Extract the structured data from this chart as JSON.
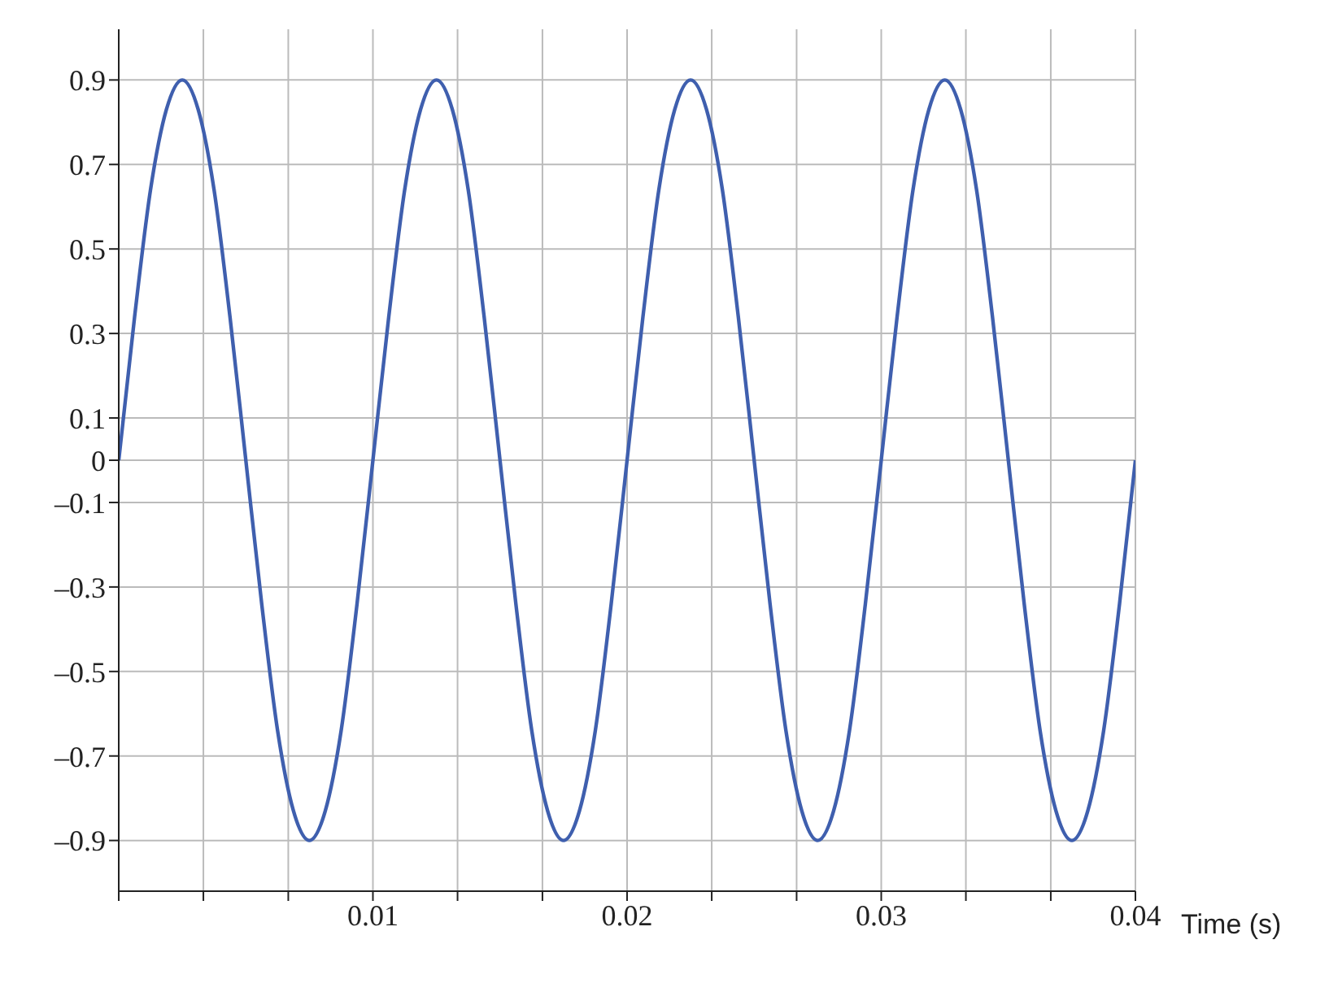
{
  "chart_data": {
    "type": "line",
    "xlabel": "Time (s)",
    "x": [
      0,
      0.000625,
      0.00125,
      0.001875,
      0.0025,
      0.003125,
      0.00375,
      0.004375,
      0.005,
      0.005625,
      0.00625,
      0.006875,
      0.0075,
      0.008125,
      0.00875,
      0.009375,
      0.01,
      0.010625,
      0.01125,
      0.011875,
      0.0125,
      0.013125,
      0.01375,
      0.014375,
      0.015,
      0.015625,
      0.01625,
      0.016875,
      0.0175,
      0.018125,
      0.01875,
      0.019375,
      0.02,
      0.020625,
      0.02125,
      0.021875,
      0.0225,
      0.023125,
      0.02375,
      0.024375,
      0.025,
      0.025625,
      0.02625,
      0.026875,
      0.0275,
      0.028125,
      0.02875,
      0.029375,
      0.03,
      0.030625,
      0.03125,
      0.031875,
      0.0325,
      0.033125,
      0.03375,
      0.034375,
      0.035,
      0.035625,
      0.03625,
      0.036875,
      0.0375,
      0.038125,
      0.03875,
      0.039375,
      0.04
    ],
    "series": [
      {
        "color": "#3f5fae",
        "values": [
          0,
          0.34,
          0.64,
          0.83,
          0.9,
          0.83,
          0.64,
          0.34,
          0,
          -0.34,
          -0.64,
          -0.83,
          -0.9,
          -0.83,
          -0.64,
          -0.34,
          0,
          0.34,
          0.64,
          0.83,
          0.9,
          0.83,
          0.64,
          0.34,
          0,
          -0.34,
          -0.64,
          -0.83,
          -0.9,
          -0.83,
          -0.64,
          -0.34,
          0,
          0.34,
          0.64,
          0.83,
          0.9,
          0.83,
          0.64,
          0.34,
          0,
          -0.34,
          -0.64,
          -0.83,
          -0.9,
          -0.83,
          -0.64,
          -0.34,
          0,
          0.34,
          0.64,
          0.83,
          0.9,
          0.83,
          0.64,
          0.34,
          0,
          -0.34,
          -0.64,
          -0.83,
          -0.9,
          -0.83,
          -0.64,
          -0.34,
          0
        ]
      }
    ],
    "xlim": [
      0,
      0.04
    ],
    "xticks": [
      {
        "value": 0,
        "label": null
      },
      {
        "value": 0.00333,
        "label": null
      },
      {
        "value": 0.00667,
        "label": null
      },
      0.01,
      {
        "value": 0.01333,
        "label": null
      },
      {
        "value": 0.01667,
        "label": null
      },
      0.02,
      {
        "value": 0.02333,
        "label": null
      },
      {
        "value": 0.02667,
        "label": null
      },
      0.03,
      {
        "value": 0.03333,
        "label": null
      },
      {
        "value": 0.03667,
        "label": null
      },
      0.04
    ],
    "ylim": [
      -1.02,
      1.02
    ],
    "yticks": [
      0.9,
      0.7,
      0.5,
      0.3,
      0.1,
      0,
      {
        "value": -0.1,
        "label": "–0.1"
      },
      {
        "value": -0.3,
        "label": "–0.3"
      },
      {
        "value": -0.5,
        "label": "–0.5"
      },
      {
        "value": -0.7,
        "label": "–0.7"
      },
      {
        "value": -0.9,
        "label": "–0.9"
      }
    ],
    "grid": true,
    "marker": "none",
    "line_style": "solid",
    "legend": false
  }
}
